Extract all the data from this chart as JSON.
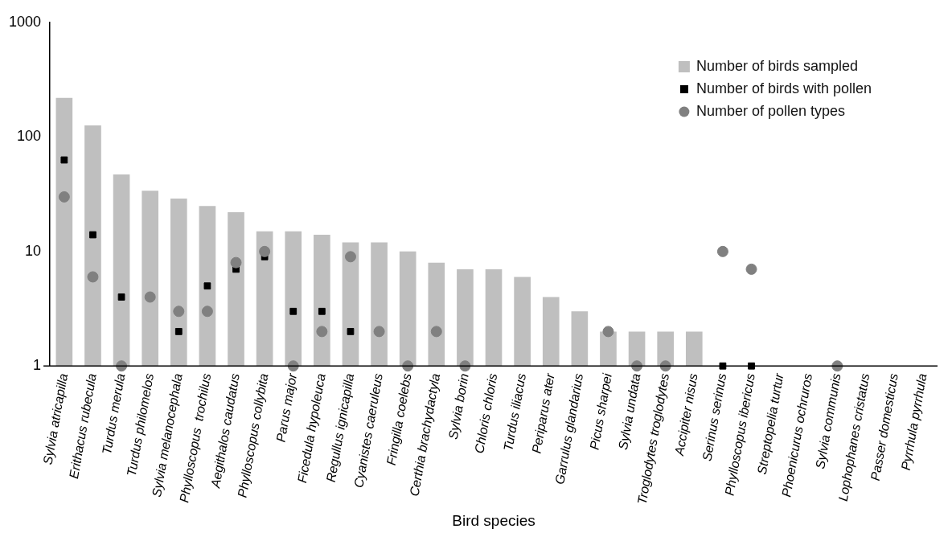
{
  "chart_data": {
    "type": "bar",
    "xlabel": "Bird species",
    "categories": [
      "Sylvia atricapilla",
      "Erithacus rubecula",
      "Turdus merula",
      "Turdus philomelos",
      "Sylvia melanocephala",
      "Phylloscopus  trochilus",
      "Aegithalos caudatus",
      "Phylloscopus collybita",
      "Parus major",
      "Ficedula hypoleuca",
      "Regullus ignicapilla",
      "Cyanistes caeruleus",
      "Fringilla coelebs",
      "Certhia brachydactyla",
      "Sylvia borin",
      "Chloris chloris",
      "Turdus iliacus",
      "Periparus ater",
      "Garrulus glandarius",
      "Picus sharpei",
      "Sylvia undata",
      "Troglodytes troglodytes",
      "Accipiter nisus",
      "Serinus serinus",
      "Phylloscopus ibericus",
      "Streptopelia turtur",
      "Phoenicurus ochruros",
      "Sylvia communis",
      "Lophophanes cristatus",
      "Passer domesticus",
      "Pyrrhula pyrrhula"
    ],
    "series": [
      {
        "name": "Number of birds sampled",
        "color": "#bfbfbf",
        "values": [
          220,
          126,
          47,
          34,
          29,
          25,
          22,
          15,
          15,
          14,
          12,
          12,
          10,
          8,
          7,
          7,
          6,
          4,
          3,
          2,
          2,
          2,
          2,
          null,
          null,
          null,
          null,
          null,
          null,
          null,
          null
        ]
      },
      {
        "name": "Number of birds with pollen",
        "type": "scatter",
        "marker": "square",
        "color": "#000000",
        "values": [
          63,
          14,
          4,
          null,
          2,
          5,
          7,
          9,
          3,
          3,
          2,
          null,
          null,
          null,
          null,
          null,
          null,
          null,
          null,
          null,
          null,
          null,
          null,
          1,
          1,
          null,
          null,
          null,
          null,
          null,
          null
        ]
      },
      {
        "name": "Number of pollen types",
        "type": "scatter",
        "marker": "circle",
        "color": "#808080",
        "values": [
          30,
          6,
          1,
          4,
          3,
          3,
          8,
          10,
          1,
          2,
          9,
          2,
          1,
          2,
          1,
          null,
          null,
          null,
          null,
          2,
          1,
          1,
          null,
          10,
          7,
          null,
          null,
          1,
          null,
          null,
          null
        ]
      }
    ],
    "log": true,
    "ylim": [
      1,
      1000
    ],
    "yticks": [
      1,
      10,
      100,
      1000
    ],
    "grid": false,
    "legend": "top right"
  }
}
